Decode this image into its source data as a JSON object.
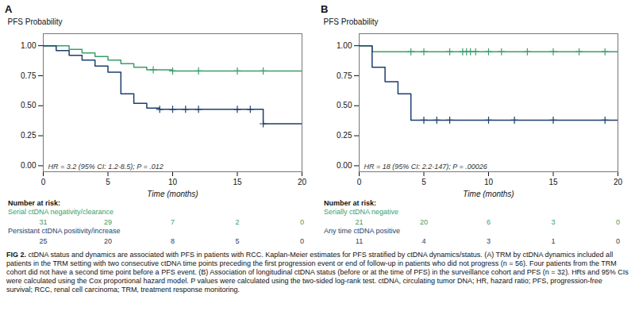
{
  "chart_data": [
    {
      "type": "step",
      "title": "A",
      "annotation": "HR = 3.2 (95% CI: 1.2-8.5); P = .012",
      "xlabel": "Time (months)",
      "ylabel": "PFS Probability",
      "xlim": [
        0,
        20
      ],
      "ylim": [
        -0.05,
        1.1
      ],
      "xticks": [
        0,
        5,
        10,
        15,
        20
      ],
      "yticks": [
        {
          "value": 0,
          "label": "0.00"
        },
        0.25,
        {
          "value": 0.5,
          "label": "0.50"
        },
        0.75,
        {
          "value": 1,
          "label": "1.00"
        }
      ],
      "grid": false,
      "series": [
        {
          "name": "Serial ctDNA negativity/clearance",
          "color": "#3A9E6A",
          "x": [
            0,
            1,
            2,
            3,
            4,
            5,
            6,
            7,
            8,
            9,
            10,
            11,
            12,
            13,
            14,
            15,
            16,
            17,
            18,
            19,
            20
          ],
          "values": [
            1.0,
            1.0,
            0.97,
            0.94,
            0.91,
            0.88,
            0.85,
            0.82,
            0.8,
            0.8,
            0.79,
            0.79,
            0.79,
            0.79,
            0.79,
            0.79,
            0.79,
            0.79,
            0.79,
            0.79,
            0.79
          ],
          "censor_x": [
            8.5,
            10,
            12,
            15,
            17
          ],
          "censor_y": [
            0.8,
            0.79,
            0.79,
            0.79,
            0.79
          ]
        },
        {
          "name": "Persistant ctDNA positivity/increase",
          "color": "#1C3F6E",
          "x": [
            0,
            1,
            2,
            3,
            4,
            5,
            6,
            7,
            8,
            9,
            10,
            11,
            12,
            13,
            14,
            15,
            16,
            17,
            18,
            19,
            20
          ],
          "values": [
            1.0,
            0.96,
            0.92,
            0.88,
            0.83,
            0.78,
            0.6,
            0.52,
            0.48,
            0.47,
            0.47,
            0.47,
            0.47,
            0.47,
            0.47,
            0.47,
            0.47,
            0.35,
            0.35,
            0.35,
            0.35
          ],
          "censor_x": [
            9,
            10,
            11,
            12,
            15,
            16,
            17
          ],
          "censor_y": [
            0.47,
            0.47,
            0.47,
            0.47,
            0.47,
            0.47,
            0.35
          ]
        }
      ],
      "risk_table": {
        "title": "Number at risk:",
        "times": [
          0,
          5,
          10,
          15,
          20
        ],
        "rows": [
          [
            31,
            29,
            7,
            2,
            0
          ],
          [
            25,
            20,
            8,
            5,
            0
          ]
        ]
      }
    },
    {
      "type": "step",
      "title": "B",
      "annotation": "HR = 18 (95% CI: 2.2-147); P = .00026",
      "xlabel": "Time (months)",
      "ylabel": "PFS Probability",
      "xlim": [
        0,
        20
      ],
      "ylim": [
        -0.05,
        1.1
      ],
      "xticks": [
        0,
        5,
        10,
        15,
        20
      ],
      "yticks": [
        {
          "value": 0,
          "label": "0.00"
        },
        0.25,
        {
          "value": 0.5,
          "label": "0.50"
        },
        0.75,
        {
          "value": 1,
          "label": "1.00"
        }
      ],
      "grid": false,
      "series": [
        {
          "name": "Serially ctDNA negative",
          "color": "#3A9E6A",
          "x": [
            0,
            0.5,
            1,
            2,
            3,
            4,
            5,
            6,
            7,
            8,
            9,
            10,
            11,
            12,
            13,
            14,
            15,
            16,
            17,
            18,
            19,
            20
          ],
          "values": [
            1.0,
            1.0,
            0.95,
            0.95,
            0.95,
            0.95,
            0.95,
            0.95,
            0.95,
            0.95,
            0.95,
            0.95,
            0.95,
            0.95,
            0.95,
            0.95,
            0.95,
            0.95,
            0.95,
            0.95,
            0.95,
            0.95
          ],
          "censor_x": [
            4,
            5,
            7,
            8,
            8.3,
            8.6,
            9,
            10,
            11,
            13,
            15,
            17,
            19
          ],
          "censor_y": [
            0.95,
            0.95,
            0.95,
            0.95,
            0.95,
            0.95,
            0.95,
            0.95,
            0.95,
            0.95,
            0.95,
            0.95,
            0.95
          ]
        },
        {
          "name": "Any time ctDNA positive",
          "color": "#1C3F6E",
          "x": [
            0,
            1,
            2,
            3,
            4,
            5,
            6,
            7,
            8,
            9,
            10,
            11,
            12,
            13,
            14,
            15,
            16,
            17,
            18,
            19,
            20
          ],
          "values": [
            1.0,
            0.82,
            0.7,
            0.6,
            0.38,
            0.38,
            0.38,
            0.38,
            0.38,
            0.38,
            0.38,
            0.38,
            0.38,
            0.38,
            0.38,
            0.38,
            0.38,
            0.38,
            0.38,
            0.38,
            0.38
          ],
          "censor_x": [
            5,
            6,
            7,
            10,
            12,
            15,
            19
          ],
          "censor_y": [
            0.38,
            0.38,
            0.38,
            0.38,
            0.38,
            0.38,
            0.38
          ]
        }
      ],
      "risk_table": {
        "title": "Number at risk:",
        "times": [
          0,
          5,
          10,
          15,
          20
        ],
        "rows": [
          [
            21,
            20,
            6,
            3,
            0
          ],
          [
            11,
            4,
            3,
            1,
            0
          ]
        ]
      }
    }
  ],
  "caption": {
    "label": "FIG 2.",
    "text": " ctDNA status and dynamics are associated with PFS in patients with RCC. Kaplan-Meier estimates for PFS stratified by ctDNA dynamics/status. (A) TRM by ctDNA dynamics included all patients in the TRM setting with two consecutive ctDNA time points preceding the first progression event or end of follow-up in patients who did not progress (n = 56). Four patients from the TRM cohort did not have a second time point before a PFS event. (B) Association of longitudinal ctDNA status (before or at the time of PFS) in the surveillance cohort and PFS (n = 32). HRs and 95% CIs were calculated using the Cox proportional hazard model. P values were calculated using the two-sided log-rank test. ctDNA, circulating tumor DNA; HR, hazard ratio; PFS, progression-free survival; RCC, renal cell carcinoma; TRM, treatment response monitoring."
  }
}
